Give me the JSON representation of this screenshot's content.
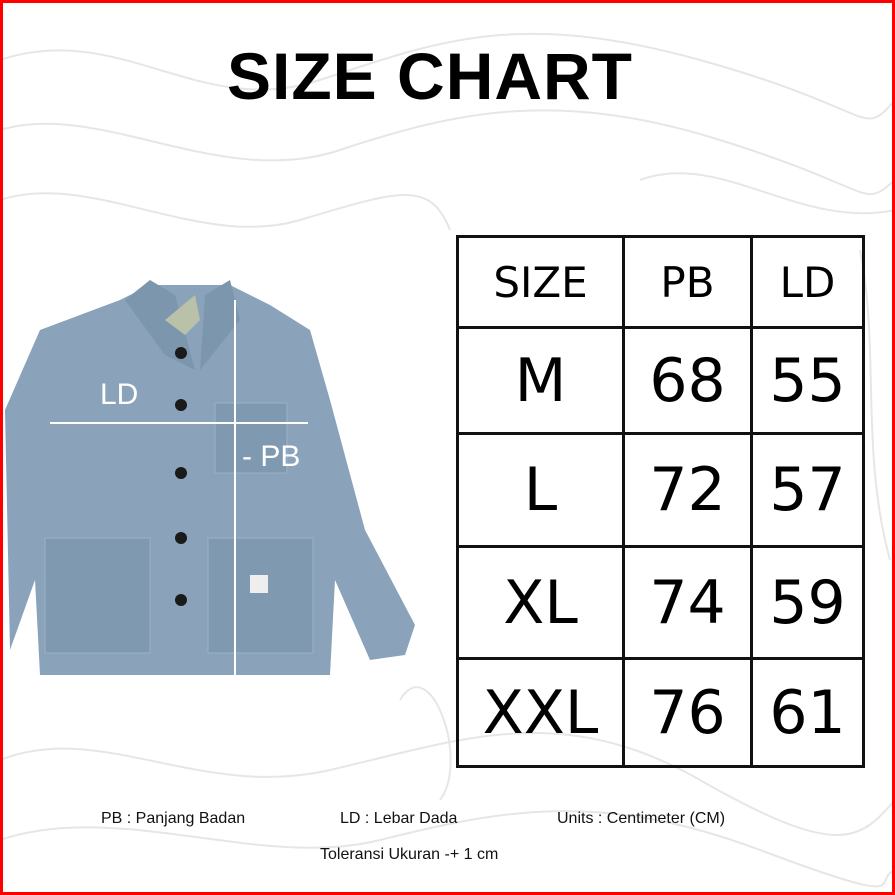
{
  "title": "SIZE CHART",
  "image_labels": {
    "ld": "LD",
    "pb": "- PB"
  },
  "table": {
    "headers": [
      "SIZE",
      "PB",
      "LD"
    ],
    "rows": [
      [
        "M",
        "68",
        "55"
      ],
      [
        "L",
        "72",
        "57"
      ],
      [
        "XL",
        "74",
        "59"
      ],
      [
        "XXL",
        "76",
        "61"
      ]
    ]
  },
  "legend": {
    "pb": "PB : Panjang Badan",
    "ld": "LD : Lebar Dada",
    "units": "Units : Centimeter (CM)",
    "tolerance": "Toleransi Ukuran -+ 1 cm"
  },
  "colors": {
    "border": "#ff0000",
    "jacket": "#8aa3ba"
  }
}
